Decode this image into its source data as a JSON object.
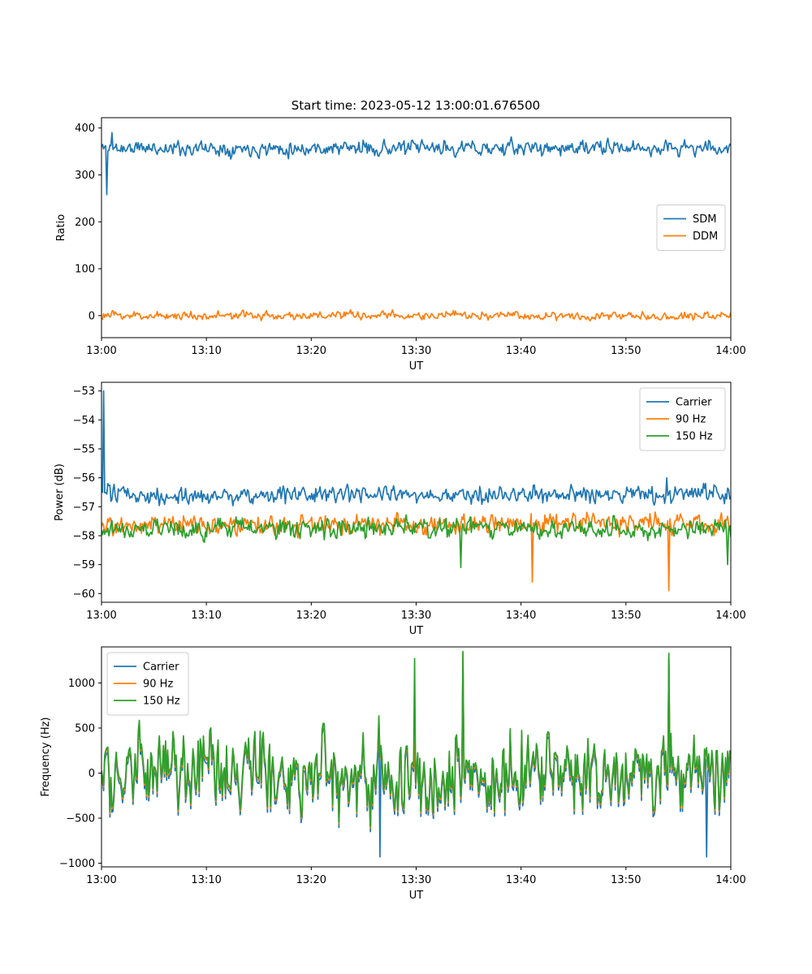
{
  "figure": {
    "title": "Start time: 2023-05-12 13:00:01.676500"
  },
  "chart_data": [
    {
      "type": "line",
      "xlabel": "UT",
      "ylabel": "Ratio",
      "xlim": [
        "13:00",
        "14:00"
      ],
      "ylim": [
        -47,
        422
      ],
      "x_ticks": [
        "13:00",
        "13:10",
        "13:20",
        "13:30",
        "13:40",
        "13:50",
        "14:00"
      ],
      "y_ticks": [
        0,
        100,
        200,
        300,
        400
      ],
      "legend": {
        "placement": "center-right"
      },
      "series": [
        {
          "name": "SDM",
          "color": "#1f77b4",
          "mean": 357,
          "noise": 14,
          "seed": 11,
          "spikes": [
            [
              0.5,
              258
            ],
            [
              1.0,
              390
            ]
          ]
        },
        {
          "name": "DDM",
          "color": "#ff7f0e",
          "mean": 0,
          "noise": 8,
          "seed": 23,
          "spikes": []
        }
      ]
    },
    {
      "type": "line",
      "xlabel": "UT",
      "ylabel": "Power (dB)",
      "xlim": [
        "13:00",
        "14:00"
      ],
      "ylim": [
        -60.3,
        -52.7
      ],
      "x_ticks": [
        "13:00",
        "13:10",
        "13:20",
        "13:30",
        "13:40",
        "13:50",
        "14:00"
      ],
      "y_ticks": [
        -53,
        -54,
        -55,
        -56,
        -57,
        -58,
        -59,
        -60
      ],
      "legend": {
        "placement": "top-right"
      },
      "series": [
        {
          "name": "Carrier",
          "color": "#1f77b4",
          "mean": -56.6,
          "noise": 0.28,
          "seed": 31,
          "spikes": [
            [
              0.1,
              -56.5
            ],
            [
              0.25,
              -53.0
            ],
            [
              0.6,
              -56.2
            ],
            [
              53.9,
              -56.0
            ]
          ]
        },
        {
          "name": "90 Hz",
          "color": "#ff7f0e",
          "mean": -57.6,
          "noise": 0.3,
          "seed": 47,
          "spikes": [
            [
              41.1,
              -59.6
            ],
            [
              54.1,
              -59.9
            ]
          ]
        },
        {
          "name": "150 Hz",
          "color": "#2ca02c",
          "mean": -57.75,
          "noise": 0.3,
          "seed": 59,
          "spikes": [
            [
              34.3,
              -59.1
            ],
            [
              59.7,
              -59.0
            ]
          ]
        }
      ]
    },
    {
      "type": "line",
      "xlabel": "UT",
      "ylabel": "Frequency (Hz)",
      "xlim": [
        "13:00",
        "14:00"
      ],
      "ylim": [
        -1040,
        1400
      ],
      "x_ticks": [
        "13:00",
        "13:10",
        "13:20",
        "13:30",
        "13:40",
        "13:50",
        "14:00"
      ],
      "y_ticks": [
        -1000,
        -500,
        0,
        500,
        1000
      ],
      "legend": {
        "placement": "top-left"
      },
      "series": [
        {
          "name": "Carrier",
          "color": "#1f77b4",
          "mean": -40,
          "noise": 380,
          "seed": 71,
          "spikes": [
            [
              34.5,
              1300
            ],
            [
              54.1,
              1280
            ],
            [
              26.5,
              -930
            ],
            [
              57.7,
              -930
            ]
          ]
        },
        {
          "name": "90 Hz",
          "color": "#ff7f0e",
          "mean": 0,
          "noise": 380,
          "seed": 71,
          "spikes": [
            [
              34.5,
              1330
            ],
            [
              54.1,
              1310
            ]
          ]
        },
        {
          "name": "150 Hz",
          "color": "#2ca02c",
          "mean": 20,
          "noise": 380,
          "seed": 71,
          "spikes": [
            [
              34.5,
              1350
            ],
            [
              54.1,
              1330
            ],
            [
              29.8,
              1270
            ]
          ]
        }
      ]
    }
  ]
}
